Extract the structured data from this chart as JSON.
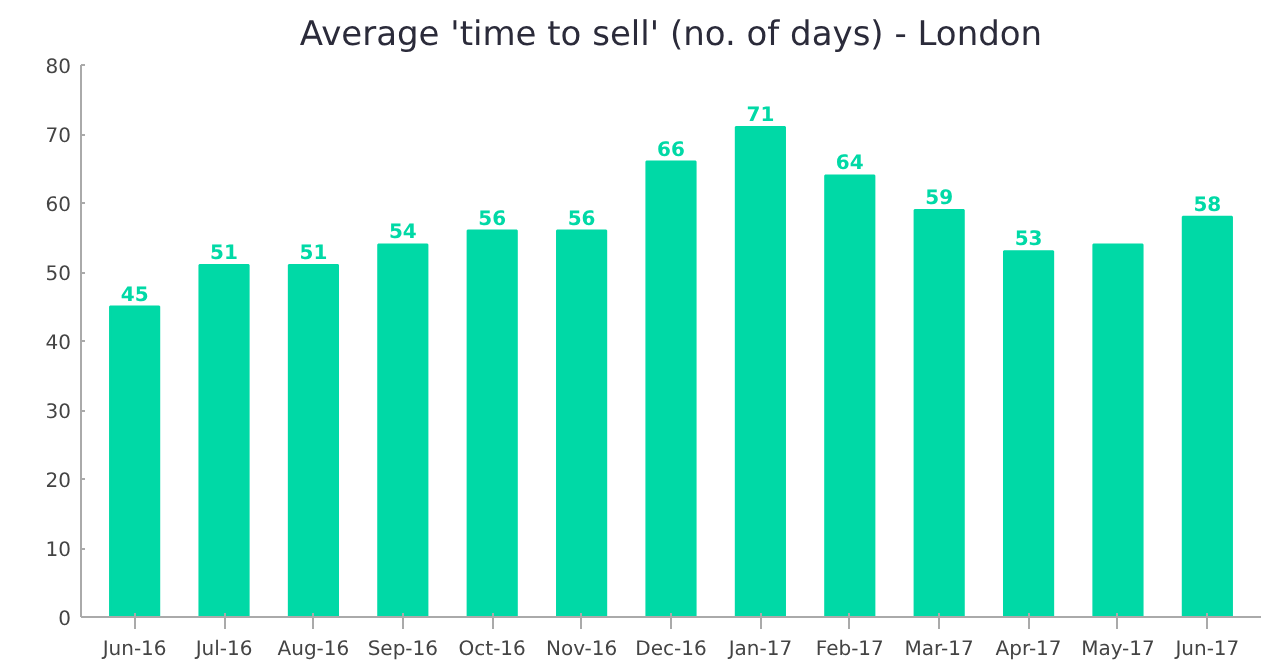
{
  "chart_data": {
    "type": "bar",
    "title": "Average 'time to sell' (no. of days) - London",
    "categories": [
      "Jun-16",
      "Jul-16",
      "Aug-16",
      "Sep-16",
      "Oct-16",
      "Nov-16",
      "Dec-16",
      "Jan-17",
      "Feb-17",
      "Mar-17",
      "Apr-17",
      "May-17",
      "Jun-17"
    ],
    "values": [
      45,
      51,
      51,
      54,
      56,
      56,
      66,
      71,
      64,
      59,
      53,
      54,
      58
    ],
    "value_labels": [
      "45",
      "51",
      "51",
      "54",
      "56",
      "56",
      "66",
      "71",
      "64",
      "59",
      "53",
      null,
      "58"
    ],
    "color": "#00d9a6",
    "ylim": [
      0,
      80
    ],
    "yticks": [
      0,
      10,
      20,
      30,
      40,
      50,
      60,
      70,
      80
    ],
    "grid": false
  }
}
